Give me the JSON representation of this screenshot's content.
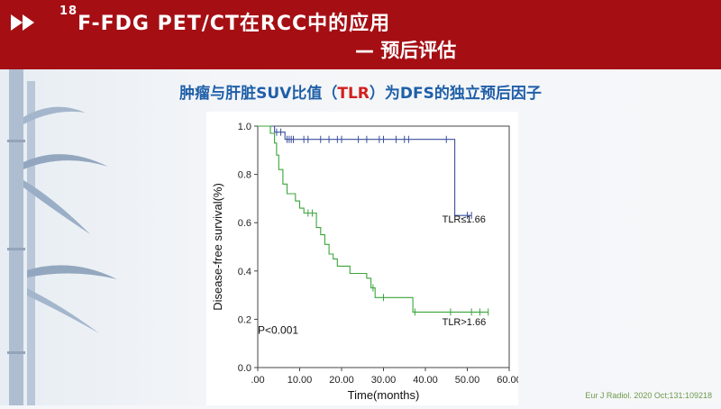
{
  "header": {
    "title_sup": "18",
    "title_main": "F-FDG PET/CT在RCC中的应用",
    "title_sub": "— 预后评估",
    "bg_color": "#a50f14"
  },
  "subtitle": {
    "part1": "肿瘤与肝脏SUV比值（",
    "highlight": "TLR",
    "part2": "）为DFS的独立预后因子",
    "color": "#1f5fa8",
    "highlight_color": "#d31f1f"
  },
  "citation": "Eur J Radiol. 2020 Oct;131:109218",
  "chart_data": {
    "type": "line",
    "step": true,
    "xlabel": "Time(months)",
    "ylabel": "Disease-free survival(%)",
    "xlim": [
      0,
      60
    ],
    "ylim": [
      0,
      1.0
    ],
    "xticks": [
      ".00",
      "10.00",
      "20.00",
      "30.00",
      "40.00",
      "50.00",
      "60.00"
    ],
    "yticks": [
      "0.0",
      "0.2",
      "0.4",
      "0.6",
      "0.8",
      "1.0"
    ],
    "annotation": "P<0.001",
    "series": [
      {
        "name": "TLR≤1.66",
        "color": "#3a4f9a",
        "steps": [
          [
            0,
            1.0
          ],
          [
            4,
            1.0
          ],
          [
            4,
            0.975
          ],
          [
            6.5,
            0.975
          ],
          [
            6.5,
            0.945
          ],
          [
            47,
            0.945
          ],
          [
            47,
            0.63
          ],
          [
            51,
            0.63
          ]
        ],
        "censors": [
          [
            4.5,
            0.975
          ],
          [
            5.5,
            0.975
          ],
          [
            7,
            0.945
          ],
          [
            7.5,
            0.945
          ],
          [
            8,
            0.945
          ],
          [
            8.5,
            0.945
          ],
          [
            11,
            0.945
          ],
          [
            12,
            0.945
          ],
          [
            15,
            0.945
          ],
          [
            17,
            0.945
          ],
          [
            19,
            0.945
          ],
          [
            20,
            0.945
          ],
          [
            24,
            0.945
          ],
          [
            26,
            0.945
          ],
          [
            29,
            0.945
          ],
          [
            30,
            0.945
          ],
          [
            33,
            0.945
          ],
          [
            35,
            0.945
          ],
          [
            36,
            0.945
          ],
          [
            45,
            0.945
          ],
          [
            50,
            0.63
          ],
          [
            51,
            0.63
          ]
        ]
      },
      {
        "name": "TLR>1.66",
        "color": "#3aa53a",
        "steps": [
          [
            0,
            1.0
          ],
          [
            3,
            1.0
          ],
          [
            3,
            0.97
          ],
          [
            4,
            0.97
          ],
          [
            4,
            0.93
          ],
          [
            4.5,
            0.93
          ],
          [
            4.5,
            0.88
          ],
          [
            5,
            0.88
          ],
          [
            5,
            0.82
          ],
          [
            6,
            0.82
          ],
          [
            6,
            0.76
          ],
          [
            7,
            0.76
          ],
          [
            7,
            0.72
          ],
          [
            9,
            0.72
          ],
          [
            9,
            0.69
          ],
          [
            10,
            0.69
          ],
          [
            10,
            0.66
          ],
          [
            11,
            0.66
          ],
          [
            11,
            0.64
          ],
          [
            14,
            0.64
          ],
          [
            14,
            0.58
          ],
          [
            15,
            0.58
          ],
          [
            15,
            0.55
          ],
          [
            16,
            0.55
          ],
          [
            16,
            0.51
          ],
          [
            17,
            0.51
          ],
          [
            17,
            0.47
          ],
          [
            18,
            0.47
          ],
          [
            18,
            0.45
          ],
          [
            19,
            0.45
          ],
          [
            19,
            0.42
          ],
          [
            22,
            0.42
          ],
          [
            22,
            0.39
          ],
          [
            26,
            0.39
          ],
          [
            26,
            0.37
          ],
          [
            27,
            0.37
          ],
          [
            27,
            0.33
          ],
          [
            28,
            0.33
          ],
          [
            28,
            0.29
          ],
          [
            37,
            0.29
          ],
          [
            37,
            0.23
          ],
          [
            55,
            0.23
          ]
        ],
        "censors": [
          [
            12,
            0.64
          ],
          [
            13,
            0.64
          ],
          [
            27.5,
            0.33
          ],
          [
            30,
            0.29
          ],
          [
            37.5,
            0.23
          ],
          [
            46,
            0.23
          ],
          [
            51,
            0.23
          ],
          [
            53,
            0.23
          ],
          [
            55,
            0.23
          ]
        ]
      }
    ],
    "labels": [
      {
        "text": "TLR≤1.66",
        "x": 44,
        "y": 0.6
      },
      {
        "text": "TLR>1.66",
        "x": 44,
        "y": 0.175
      }
    ]
  }
}
